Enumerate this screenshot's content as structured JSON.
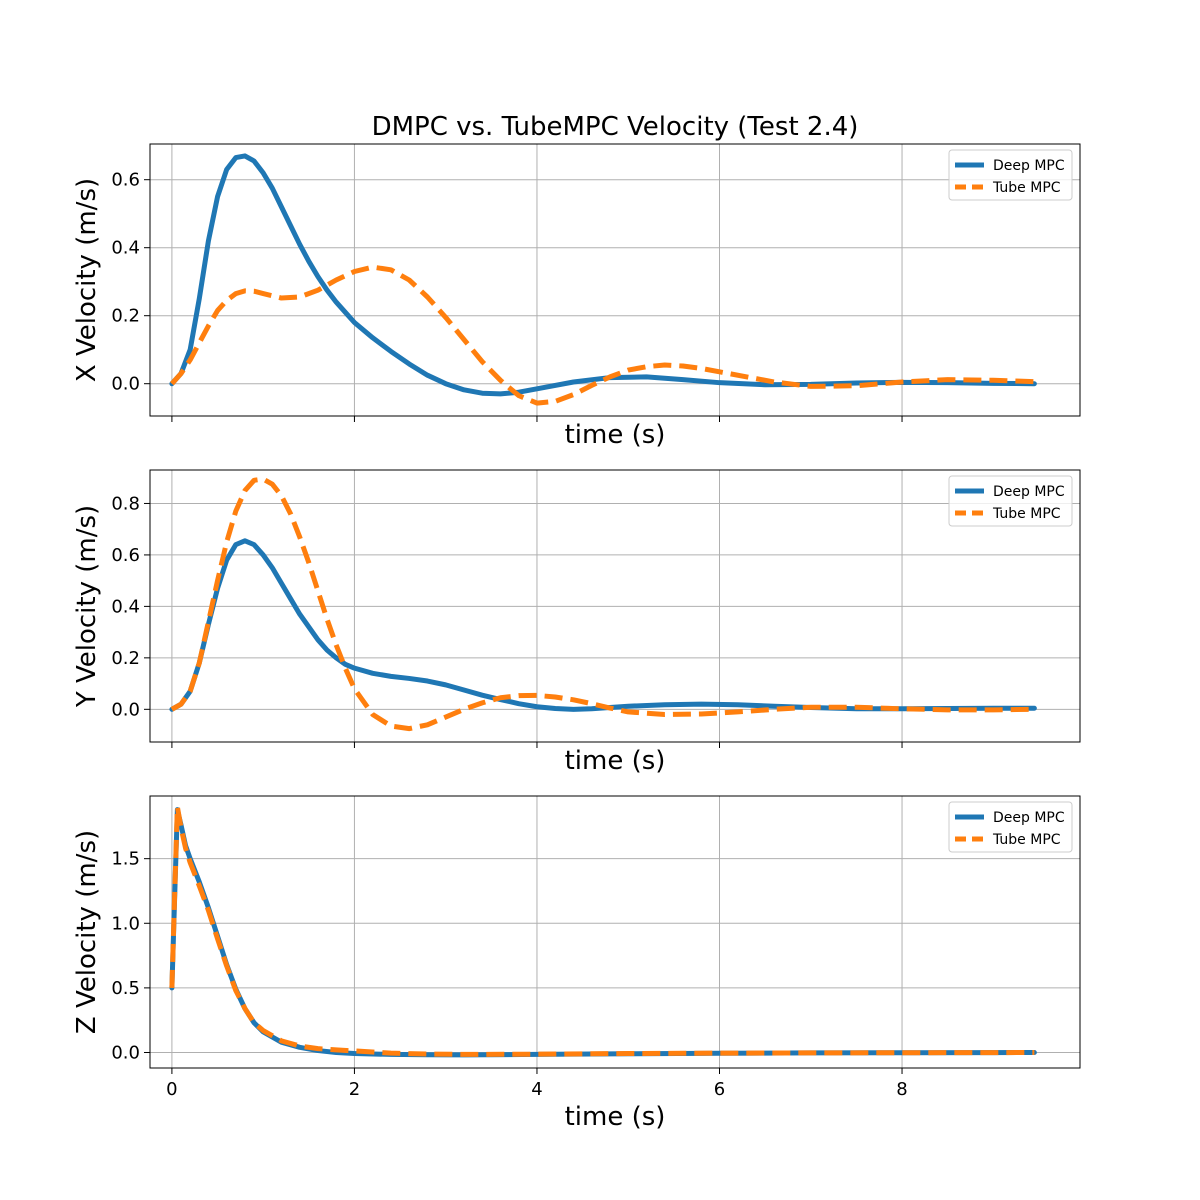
{
  "chart_data": [
    {
      "type": "line",
      "title": "DMPC vs. TubeMPC Velocity (Test 2.4)",
      "xlabel": "time (s)",
      "ylabel": "X Velocity (m/s)",
      "xlim": [
        -0.24,
        9.95
      ],
      "ylim": [
        -0.095,
        0.705
      ],
      "xticks": [
        0,
        2,
        4,
        6,
        8
      ],
      "xtick_labels_visible": false,
      "yticks": [
        0.0,
        0.2,
        0.4,
        0.6
      ],
      "ytick_labels": [
        "0.0",
        "0.2",
        "0.4",
        "0.6"
      ],
      "grid": true,
      "legend": "top-right",
      "series": [
        {
          "name": "Deep MPC",
          "style": "solid",
          "color": "#1f77b4",
          "x": [
            0,
            0.1,
            0.2,
            0.3,
            0.4,
            0.5,
            0.6,
            0.7,
            0.8,
            0.9,
            1.0,
            1.1,
            1.2,
            1.3,
            1.4,
            1.5,
            1.6,
            1.7,
            1.8,
            1.9,
            2.0,
            2.2,
            2.4,
            2.6,
            2.8,
            3.0,
            3.2,
            3.4,
            3.6,
            3.8,
            4.0,
            4.4,
            4.8,
            5.2,
            5.6,
            6.0,
            6.5,
            7.0,
            7.5,
            8.0,
            8.5,
            9.0,
            9.45
          ],
          "y": [
            0.0,
            0.03,
            0.1,
            0.25,
            0.42,
            0.55,
            0.63,
            0.665,
            0.67,
            0.655,
            0.62,
            0.575,
            0.52,
            0.465,
            0.41,
            0.36,
            0.315,
            0.275,
            0.24,
            0.21,
            0.18,
            0.135,
            0.095,
            0.058,
            0.025,
            0.0,
            -0.018,
            -0.028,
            -0.03,
            -0.025,
            -0.015,
            0.005,
            0.018,
            0.02,
            0.012,
            0.003,
            -0.003,
            -0.002,
            0.002,
            0.004,
            0.003,
            0.001,
            0.0
          ]
        },
        {
          "name": "Tube MPC",
          "style": "dashed",
          "color": "#ff7f0e",
          "x": [
            0,
            0.1,
            0.2,
            0.3,
            0.4,
            0.5,
            0.6,
            0.7,
            0.8,
            0.9,
            1.0,
            1.2,
            1.4,
            1.6,
            1.8,
            2.0,
            2.2,
            2.4,
            2.6,
            2.8,
            3.0,
            3.2,
            3.4,
            3.6,
            3.8,
            4.0,
            4.2,
            4.4,
            4.6,
            4.8,
            5.0,
            5.2,
            5.4,
            5.6,
            5.8,
            6.0,
            6.3,
            6.6,
            7.0,
            7.5,
            8.0,
            8.5,
            9.0,
            9.45
          ],
          "y": [
            0.0,
            0.03,
            0.07,
            0.12,
            0.17,
            0.215,
            0.245,
            0.265,
            0.273,
            0.272,
            0.265,
            0.252,
            0.255,
            0.275,
            0.305,
            0.33,
            0.343,
            0.335,
            0.305,
            0.255,
            0.195,
            0.13,
            0.065,
            0.01,
            -0.035,
            -0.057,
            -0.052,
            -0.032,
            -0.005,
            0.02,
            0.04,
            0.05,
            0.055,
            0.052,
            0.045,
            0.035,
            0.02,
            0.005,
            -0.008,
            -0.006,
            0.005,
            0.012,
            0.01,
            0.006
          ]
        }
      ]
    },
    {
      "type": "line",
      "xlabel": "time (s)",
      "ylabel": "Y Velocity (m/s)",
      "xlim": [
        -0.24,
        9.95
      ],
      "ylim": [
        -0.127,
        0.93
      ],
      "xticks": [
        0,
        2,
        4,
        6,
        8
      ],
      "xtick_labels_visible": false,
      "yticks": [
        0.0,
        0.2,
        0.4,
        0.6,
        0.8
      ],
      "ytick_labels": [
        "0.0",
        "0.2",
        "0.4",
        "0.6",
        "0.8"
      ],
      "grid": true,
      "legend": "top-right",
      "series": [
        {
          "name": "Deep MPC",
          "style": "solid",
          "color": "#1f77b4",
          "x": [
            0,
            0.1,
            0.2,
            0.3,
            0.4,
            0.5,
            0.6,
            0.7,
            0.8,
            0.9,
            1.0,
            1.1,
            1.2,
            1.3,
            1.4,
            1.5,
            1.6,
            1.7,
            1.8,
            1.9,
            2.0,
            2.2,
            2.4,
            2.6,
            2.8,
            3.0,
            3.2,
            3.4,
            3.6,
            3.8,
            4.0,
            4.2,
            4.4,
            4.6,
            4.8,
            5.0,
            5.4,
            5.8,
            6.2,
            6.6,
            7.0,
            7.5,
            8.0,
            8.5,
            9.0,
            9.45
          ],
          "y": [
            0.0,
            0.02,
            0.07,
            0.18,
            0.33,
            0.47,
            0.58,
            0.64,
            0.655,
            0.64,
            0.6,
            0.55,
            0.49,
            0.43,
            0.37,
            0.32,
            0.27,
            0.23,
            0.2,
            0.175,
            0.16,
            0.14,
            0.128,
            0.12,
            0.11,
            0.095,
            0.075,
            0.055,
            0.038,
            0.022,
            0.01,
            0.003,
            0.0,
            0.002,
            0.007,
            0.012,
            0.018,
            0.02,
            0.018,
            0.012,
            0.007,
            0.002,
            0.002,
            0.003,
            0.004,
            0.004
          ]
        },
        {
          "name": "Tube MPC",
          "style": "dashed",
          "color": "#ff7f0e",
          "x": [
            0,
            0.1,
            0.2,
            0.3,
            0.4,
            0.5,
            0.6,
            0.7,
            0.8,
            0.9,
            1.0,
            1.1,
            1.2,
            1.3,
            1.4,
            1.5,
            1.6,
            1.7,
            1.8,
            1.9,
            2.0,
            2.2,
            2.4,
            2.6,
            2.8,
            3.0,
            3.2,
            3.4,
            3.6,
            3.8,
            4.0,
            4.2,
            4.4,
            4.6,
            4.8,
            5.0,
            5.4,
            5.8,
            6.2,
            6.6,
            7.0,
            7.5,
            8.0,
            8.5,
            9.0,
            9.45
          ],
          "y": [
            0.0,
            0.02,
            0.07,
            0.18,
            0.34,
            0.5,
            0.65,
            0.77,
            0.85,
            0.89,
            0.895,
            0.875,
            0.83,
            0.76,
            0.67,
            0.57,
            0.46,
            0.35,
            0.25,
            0.16,
            0.08,
            -0.02,
            -0.065,
            -0.075,
            -0.06,
            -0.03,
            0.0,
            0.025,
            0.045,
            0.053,
            0.054,
            0.048,
            0.037,
            0.022,
            0.005,
            -0.01,
            -0.02,
            -0.018,
            -0.01,
            0.0,
            0.008,
            0.008,
            0.002,
            -0.002,
            -0.002,
            0.0
          ]
        }
      ]
    },
    {
      "type": "line",
      "xlabel": "time (s)",
      "ylabel": "Z Velocity (m/s)",
      "xlim": [
        -0.24,
        9.95
      ],
      "ylim": [
        -0.12,
        1.985
      ],
      "xticks": [
        0,
        2,
        4,
        6,
        8
      ],
      "xtick_labels": [
        "0",
        "2",
        "4",
        "6",
        "8"
      ],
      "yticks": [
        0.0,
        0.5,
        1.0,
        1.5
      ],
      "ytick_labels": [
        "0.0",
        "0.5",
        "1.0",
        "1.5"
      ],
      "grid": true,
      "legend": "top-right",
      "series": [
        {
          "name": "Deep MPC",
          "style": "solid",
          "color": "#1f77b4",
          "x": [
            0,
            0.03,
            0.06,
            0.1,
            0.15,
            0.2,
            0.3,
            0.4,
            0.5,
            0.6,
            0.7,
            0.8,
            0.9,
            1.0,
            1.2,
            1.4,
            1.6,
            1.8,
            2.0,
            2.4,
            2.8,
            3.2,
            4.0,
            5.0,
            6.0,
            7.0,
            8.0,
            9.0,
            9.45
          ],
          "y": [
            0.5,
            1.2,
            1.88,
            1.76,
            1.6,
            1.5,
            1.32,
            1.12,
            0.9,
            0.68,
            0.49,
            0.34,
            0.23,
            0.16,
            0.08,
            0.04,
            0.015,
            0.0,
            -0.008,
            -0.015,
            -0.017,
            -0.018,
            -0.015,
            -0.01,
            -0.006,
            -0.003,
            -0.002,
            -0.001,
            0.0
          ]
        },
        {
          "name": "Tube MPC",
          "style": "dashed",
          "color": "#ff7f0e",
          "x": [
            0,
            0.03,
            0.06,
            0.1,
            0.15,
            0.2,
            0.3,
            0.4,
            0.5,
            0.6,
            0.7,
            0.8,
            0.9,
            1.0,
            1.2,
            1.4,
            1.6,
            1.8,
            2.0,
            2.4,
            2.8,
            3.2,
            4.0,
            5.0,
            6.0,
            7.0,
            8.0,
            9.0,
            9.45
          ],
          "y": [
            0.5,
            1.22,
            1.9,
            1.74,
            1.58,
            1.47,
            1.29,
            1.1,
            0.88,
            0.67,
            0.48,
            0.34,
            0.23,
            0.17,
            0.09,
            0.05,
            0.03,
            0.02,
            0.012,
            -0.005,
            -0.012,
            -0.015,
            -0.013,
            -0.008,
            -0.005,
            -0.003,
            -0.002,
            -0.001,
            0.0
          ]
        }
      ]
    }
  ]
}
